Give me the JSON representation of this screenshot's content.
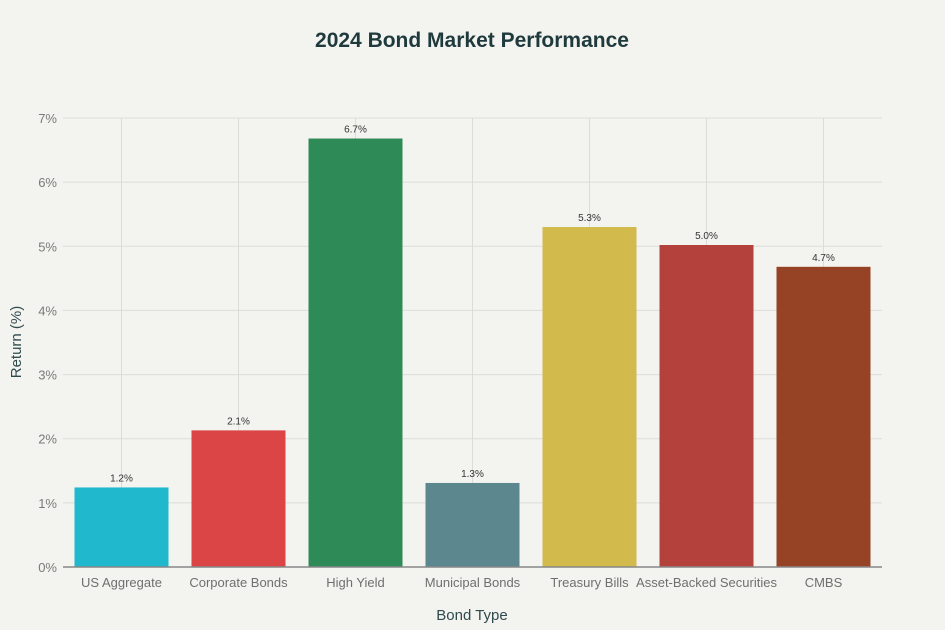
{
  "chart_data": {
    "type": "bar",
    "title": "2024 Bond Market Performance",
    "xlabel": "Bond Type",
    "ylabel": "Return (%)",
    "ylim": [
      0,
      7
    ],
    "yticks": [
      "0%",
      "1%",
      "2%",
      "3%",
      "4%",
      "5%",
      "6%",
      "7%"
    ],
    "grid": true,
    "categories": [
      "US Aggregate",
      "Corporate Bonds",
      "High Yield",
      "Municipal Bonds",
      "Treasury Bills",
      "Asset-Backed Securities",
      "CMBS"
    ],
    "values": [
      1.24,
      2.13,
      6.68,
      1.31,
      5.3,
      5.02,
      4.68
    ],
    "data_labels": [
      "1.2%",
      "2.1%",
      "6.7%",
      "1.3%",
      "5.3%",
      "5.0%",
      "4.7%"
    ],
    "colors": [
      "#1fb8cd",
      "#db4545",
      "#2e8b57",
      "#5d878f",
      "#d2ba4c",
      "#b4413c",
      "#964325"
    ]
  }
}
